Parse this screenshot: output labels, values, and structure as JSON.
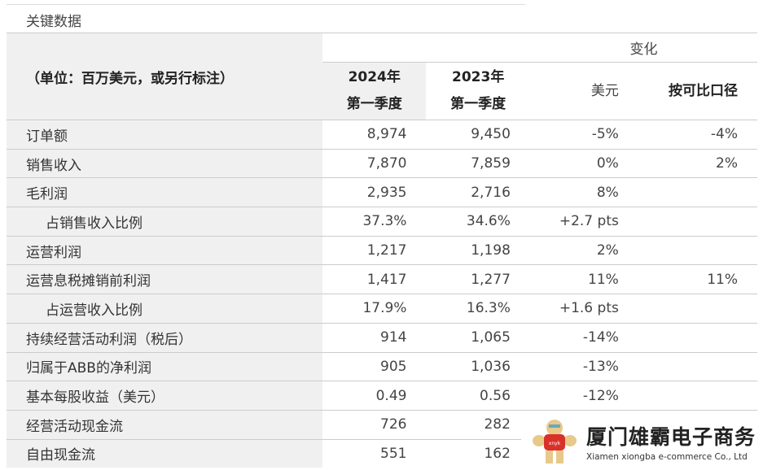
{
  "title": "关键数据",
  "header": {
    "unit": "（单位：百万美元，或另行标注）",
    "change": "变化",
    "col2024": [
      "2024年",
      "第一季度"
    ],
    "col2023": [
      "2023年",
      "第一季度"
    ],
    "usd": "美元",
    "comparable": "按可比口径"
  },
  "rows": [
    {
      "label": "订单额",
      "v2024": "8,974",
      "v2023": "9,450",
      "usd": "-5%",
      "comp": "-4%"
    },
    {
      "label": "销售收入",
      "v2024": "7,870",
      "v2023": "7,859",
      "usd": "0%",
      "comp": "2%"
    },
    {
      "label": "毛利润",
      "v2024": "2,935",
      "v2023": "2,716",
      "usd": "8%",
      "comp": ""
    },
    {
      "label": "占销售收入比例",
      "v2024": "37.3%",
      "v2023": "34.6%",
      "usd": "+2.7 pts",
      "comp": "",
      "indent": true
    },
    {
      "label": "运营利润",
      "v2024": "1,217",
      "v2023": "1,198",
      "usd": "2%",
      "comp": ""
    },
    {
      "label": "运营息税摊销前利润",
      "v2024": "1,417",
      "v2023": "1,277",
      "usd": "11%",
      "comp": "11%"
    },
    {
      "label": "占运营收入比例",
      "v2024": "17.9%",
      "v2023": "16.3%",
      "usd": "+1.6 pts",
      "comp": "",
      "indent": true
    },
    {
      "label": "持续经营活动利润（税后）",
      "v2024": "914",
      "v2023": "1,065",
      "usd": "-14%",
      "comp": ""
    },
    {
      "label": "归属于ABB的净利润",
      "v2024": "905",
      "v2023": "1,036",
      "usd": "-13%",
      "comp": ""
    },
    {
      "label": "基本每股收益（美元）",
      "v2024": "0.49",
      "v2023": "0.56",
      "usd": "-12%",
      "comp": ""
    },
    {
      "label": "经营活动现金流",
      "v2024": "726",
      "v2023": "282",
      "usd": "",
      "comp": ""
    },
    {
      "label": "自由现金流",
      "v2024": "551",
      "v2023": "162",
      "usd": "",
      "comp": ""
    }
  ],
  "watermark": {
    "name": "厦门雄霸电子商务",
    "english": "Xiamen xiongba e-commerce Co., Ltd",
    "shirt": "xnyk"
  }
}
